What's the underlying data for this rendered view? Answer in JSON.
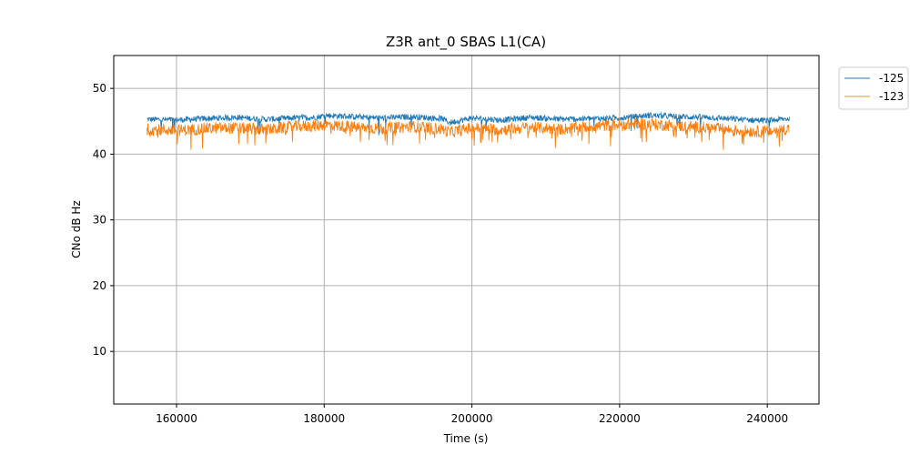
{
  "chart_data": {
    "type": "line",
    "title": "Z3R ant_0 SBAS L1(CA)",
    "xlabel": "Time (s)",
    "ylabel": "CNo dB Hz",
    "xlim": [
      151500,
      247000
    ],
    "ylim": [
      2,
      55
    ],
    "xticks": [
      160000,
      180000,
      200000,
      220000,
      240000
    ],
    "yticks": [
      10,
      20,
      30,
      40,
      50
    ],
    "grid": true,
    "legend_position": "upper-right-outside",
    "series": [
      {
        "name": "-125",
        "color": "#1f77b4",
        "x": [
          156000,
          160000,
          164000,
          168000,
          172000,
          176000,
          179000,
          180000,
          184000,
          188000,
          192000,
          196000,
          197000,
          200000,
          204000,
          208000,
          212000,
          216000,
          220000,
          224000,
          228000,
          232000,
          236000,
          240000,
          243000
        ],
        "y": [
          45.3,
          45.2,
          45.4,
          45.6,
          45.3,
          45.5,
          45.6,
          45.9,
          45.7,
          45.5,
          45.7,
          45.4,
          44.8,
          45.5,
          45.2,
          45.6,
          45.3,
          45.4,
          45.5,
          45.9,
          45.7,
          45.6,
          45.3,
          45.1,
          45.4
        ]
      },
      {
        "name": "-123",
        "color": "#ff7f0e",
        "x": [
          156000,
          160000,
          164000,
          168000,
          172000,
          176000,
          179000,
          180000,
          184000,
          188000,
          192000,
          196000,
          197000,
          200000,
          204000,
          208000,
          212000,
          216000,
          220000,
          224000,
          228000,
          232000,
          236000,
          240000,
          243000
        ],
        "y": [
          43.8,
          43.6,
          43.9,
          44.0,
          43.7,
          44.2,
          44.3,
          44.5,
          44.1,
          43.9,
          44.2,
          43.8,
          43.3,
          44.0,
          43.7,
          44.1,
          43.8,
          44.2,
          44.5,
          44.6,
          44.3,
          44.0,
          43.6,
          43.4,
          43.9
        ]
      }
    ]
  }
}
